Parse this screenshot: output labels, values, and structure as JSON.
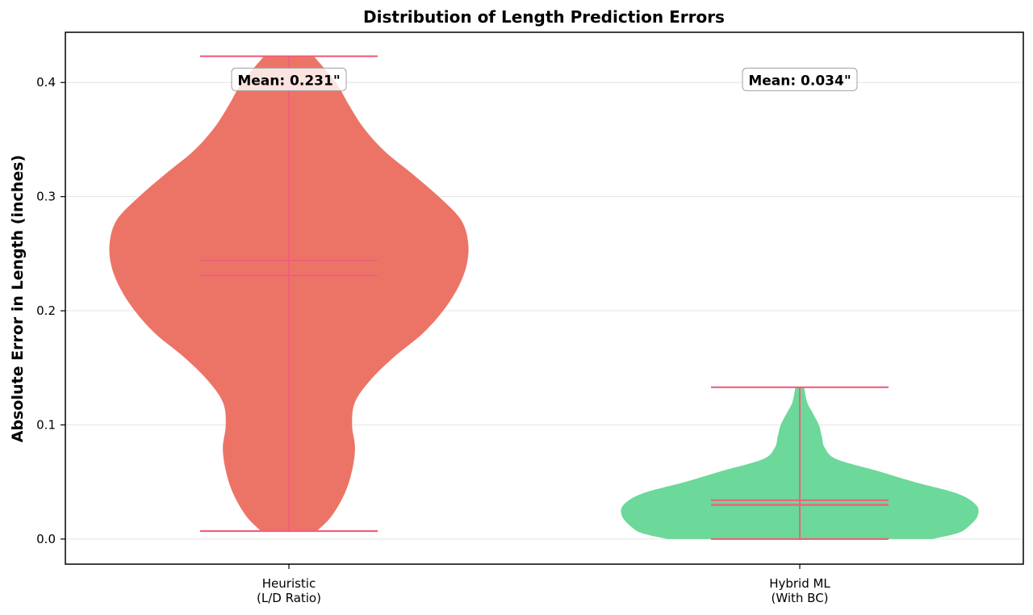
{
  "chart_data": {
    "type": "violin",
    "title": "Distribution of Length Prediction Errors",
    "xlabel": "",
    "ylabel": "Absolute Error in Length (inches)",
    "ylim": [
      -0.022,
      0.444
    ],
    "yticks": [
      0.0,
      0.1,
      0.2,
      0.3,
      0.4
    ],
    "ytick_labels": [
      "0.0",
      "0.1",
      "0.2",
      "0.3",
      "0.4"
    ],
    "grid": "horizontal",
    "colors": {
      "line": "#f0607a",
      "grid": "#e4e4e4"
    },
    "series": [
      {
        "category": [
          "Heuristic",
          "(L/D Ratio)"
        ],
        "color": "#ec7466",
        "min": 0.007,
        "max": 0.423,
        "mean": 0.231,
        "median": 0.244,
        "mean_label": "Mean: 0.231\"",
        "density": [
          [
            0.007,
            0.19
          ],
          [
            0.02,
            0.29
          ],
          [
            0.04,
            0.38
          ],
          [
            0.06,
            0.43
          ],
          [
            0.08,
            0.45
          ],
          [
            0.1,
            0.43
          ],
          [
            0.12,
            0.45
          ],
          [
            0.14,
            0.56
          ],
          [
            0.16,
            0.72
          ],
          [
            0.18,
            0.91
          ],
          [
            0.2,
            1.05
          ],
          [
            0.22,
            1.15
          ],
          [
            0.24,
            1.21
          ],
          [
            0.26,
            1.22
          ],
          [
            0.28,
            1.17
          ],
          [
            0.3,
            1.02
          ],
          [
            0.32,
            0.84
          ],
          [
            0.34,
            0.65
          ],
          [
            0.36,
            0.51
          ],
          [
            0.38,
            0.41
          ],
          [
            0.4,
            0.32
          ],
          [
            0.423,
            0.17
          ]
        ]
      },
      {
        "category": [
          "Hybrid ML",
          "(With BC)"
        ],
        "color": "#6cd89a",
        "min": 0.0,
        "max": 0.133,
        "mean": 0.034,
        "median": 0.03,
        "mean_label": "Mean: 0.034\"",
        "density": [
          [
            0.0,
            0.9
          ],
          [
            0.005,
            1.07
          ],
          [
            0.01,
            1.14
          ],
          [
            0.02,
            1.21
          ],
          [
            0.03,
            1.2
          ],
          [
            0.04,
            1.07
          ],
          [
            0.05,
            0.78
          ],
          [
            0.06,
            0.52
          ],
          [
            0.07,
            0.25
          ],
          [
            0.08,
            0.17
          ],
          [
            0.09,
            0.15
          ],
          [
            0.1,
            0.13
          ],
          [
            0.11,
            0.09
          ],
          [
            0.12,
            0.05
          ],
          [
            0.133,
            0.03
          ]
        ]
      }
    ]
  }
}
